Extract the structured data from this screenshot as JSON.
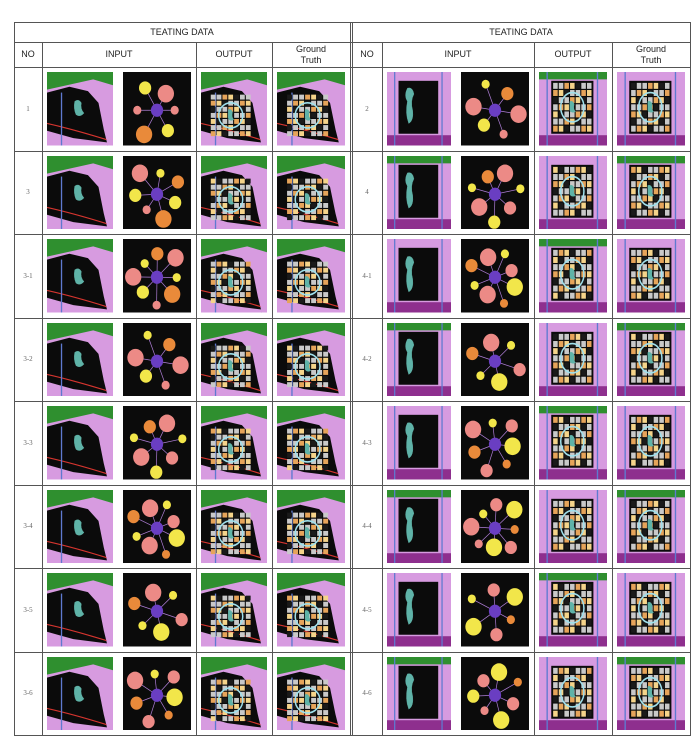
{
  "table": {
    "title_left": "TEATING DATA",
    "title_right": "TEATING DATA",
    "headers": {
      "no": "NO",
      "input": "INPUT",
      "output": "OUTPUT",
      "ground_truth": "Ground\nTruth"
    },
    "left_rows": [
      "1",
      "3",
      "3-1",
      "3-2",
      "3-3",
      "3-4",
      "3-5",
      "3-6"
    ],
    "right_rows": [
      "2",
      "4",
      "4-1",
      "4-2",
      "4-3",
      "4-4",
      "4-5",
      "4-6"
    ]
  },
  "colors": {
    "site_purple": "#8e2f8e",
    "site_pink": "#d79be0",
    "site_green": "#2f8f2f",
    "site_black": "#0b0b0b",
    "water": "#5fb3a8",
    "node_hub": "#6a3ec2",
    "node_salmon": "#ec8a86",
    "node_yellow": "#f2e64a",
    "node_orange": "#e98a3a",
    "plan_orange": "#e6a45a",
    "road_blue": "#5f7ad0",
    "boundary_red": "#d6352f"
  }
}
